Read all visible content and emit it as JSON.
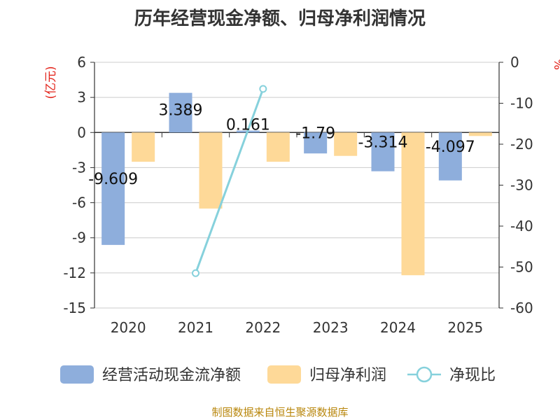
{
  "chart_data": {
    "type": "bar",
    "title": "历年经营现金净额、归母净利润情况",
    "source": "制图数据来自恒生聚源数据库",
    "categories": [
      "2020",
      "2021",
      "2022",
      "2023",
      "2024",
      "2025"
    ],
    "left_axis": {
      "unit_label": "(亿元)",
      "range": [
        -15,
        6
      ],
      "ticks": [
        "6",
        "3",
        "0",
        "-3",
        "-6",
        "-9",
        "-12",
        "-15"
      ]
    },
    "right_axis": {
      "unit_label": "%",
      "range": [
        -60,
        0
      ],
      "ticks": [
        "0",
        "-10",
        "-20",
        "-30",
        "-40",
        "-50",
        "-60"
      ]
    },
    "series": [
      {
        "name": "经营活动现金流净额",
        "type": "bar",
        "axis": "left",
        "color": "#8eaedc",
        "values": [
          -9.609,
          3.389,
          0.161,
          -1.79,
          -3.314,
          -4.097
        ],
        "labels": [
          "-9.609",
          "3.389",
          "0.161",
          "-1.79",
          "-3.314",
          "-4.097"
        ]
      },
      {
        "name": "归母净利润",
        "type": "bar",
        "axis": "left",
        "color": "#fed998",
        "values": [
          -2.5,
          -6.5,
          -2.5,
          -2.0,
          -12.2,
          -0.3
        ]
      },
      {
        "name": "净现比",
        "type": "line",
        "axis": "right",
        "color": "#86d1dc",
        "points": [
          {
            "x": "2021",
            "y": -51.5
          },
          {
            "x": "2022",
            "y": -6.5
          }
        ]
      }
    ]
  }
}
